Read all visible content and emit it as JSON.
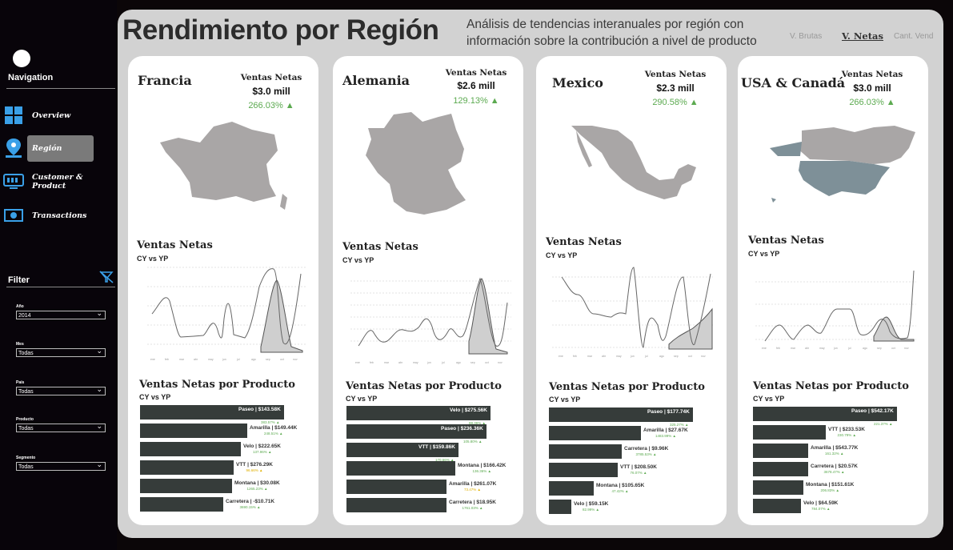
{
  "sidebar": {
    "nav_title": "Navigation",
    "items": [
      {
        "label": "Overview",
        "icon": "grid-icon"
      },
      {
        "label": "Región",
        "icon": "map-pin-icon"
      },
      {
        "label": "Customer & Product",
        "icon": "monitor-icon"
      },
      {
        "label": "Transactions",
        "icon": "money-icon"
      }
    ],
    "filter_title": "Filter",
    "filters": [
      {
        "label": "Año",
        "value": "2014"
      },
      {
        "label": "Mes",
        "value": "Todas"
      },
      {
        "label": "País",
        "value": "Todas"
      },
      {
        "label": "Producto",
        "value": "Todas"
      },
      {
        "label": "Segmento",
        "value": "Todas"
      }
    ]
  },
  "header": {
    "title": "Rendimiento por Región",
    "subtitle": "Análisis de tendencias interanuales por región con información sobre la contribución a nivel de producto",
    "toggles": [
      "V. Brutas",
      "V. Netas",
      "Cant. Vend"
    ],
    "active_toggle": "V. Netas"
  },
  "colors": {
    "accent_green": "#5caa50",
    "bar": "#363c3a",
    "map": "#a9a6a6",
    "map_highlight": "#7e9098"
  },
  "cards": [
    {
      "country": "Francia",
      "kpi_label": "Ventas Netas",
      "kpi_value": "$3.0 mill",
      "kpi_pct": "266.03% ▲",
      "chart_title": "Ventas Netas",
      "chart_sub": "CY vs YP",
      "bars_title": "Ventas Netas por Producto",
      "bars_sub": "CY vs YP",
      "bars": [
        {
          "label": "Paseo | $143.58K",
          "pct": "383.57% ▲",
          "value": 0.97,
          "inside": true
        },
        {
          "label": "Amarilla | $149.44K",
          "pct": "248.51% ▲",
          "value": 0.72
        },
        {
          "label": "Velo | $222.65K",
          "pct": "137.96% ▲",
          "value": 0.68
        },
        {
          "label": "VTT | $276.29K",
          "pct": "96.66% ▲",
          "value": 0.63,
          "pct_color": "#e0b000"
        },
        {
          "label": "Montana | $30.08K",
          "pct": "1265.23% ▲",
          "value": 0.62
        },
        {
          "label": "Carretera | -$10.71K",
          "pct": "3690.15% ▲",
          "value": 0.56
        }
      ]
    },
    {
      "country": "Alemania",
      "kpi_label": "Ventas Netas",
      "kpi_value": "$2.6 mill",
      "kpi_pct": "129.13% ▲",
      "chart_title": "Ventas Netas",
      "chart_sub": "CY vs YP",
      "bars_title": "Ventas Netas por Producto",
      "bars_sub": "CY vs YP",
      "bars": [
        {
          "label": "Velo | $275.56K",
          "pct": "88.36% ▲",
          "value": 0.97,
          "inside": true
        },
        {
          "label": "Paseo | $236.36K",
          "pct": "105.80% ▲",
          "value": 0.94,
          "inside": true
        },
        {
          "label": "VTT | $159.86K",
          "pct": "170.66% ▲",
          "value": 0.75,
          "inside": true
        },
        {
          "label": "Montana | $166.42K",
          "pct": "136.36% ▲",
          "value": 0.73
        },
        {
          "label": "Amarilla | $261.07K",
          "pct": "73.47% ▲",
          "value": 0.67,
          "pct_color": "#e0b000"
        },
        {
          "label": "Carretera | $18.95K",
          "pct": "1761.03% ▲",
          "value": 0.67
        }
      ]
    },
    {
      "country": "Mexico",
      "kpi_label": "Ventas Netas",
      "kpi_value": "$2.3 mill",
      "kpi_pct": "290.58% ▲",
      "chart_title": "Ventas Netas",
      "chart_sub": "CY vs YP",
      "bars_title": "Ventas Netas por Producto",
      "bars_sub": "CY vs YP",
      "bars": [
        {
          "label": "Paseo | $177.74K",
          "pct": "325.27% ▲",
          "value": 0.97,
          "inside": true
        },
        {
          "label": "Amarilla | $27.67K",
          "pct": "1483.99% ▲",
          "value": 0.62
        },
        {
          "label": "Carretera | $9.96K",
          "pct": "3785.53% ▲",
          "value": 0.49
        },
        {
          "label": "VTT | $208.50K",
          "pct": "76.07% ▲",
          "value": 0.46
        },
        {
          "label": "Montana | $105.65K",
          "pct": "47.42% ▲",
          "value": 0.3
        },
        {
          "label": "Velo | $59.15K",
          "pct": "82.99% ▲",
          "value": 0.15
        }
      ]
    },
    {
      "country": "USA & Canadá",
      "kpi_label": "Ventas Netas",
      "kpi_value": "$3.0 mill",
      "kpi_pct": "266.03% ▲",
      "chart_title": "Ventas Netas",
      "chart_sub": "CY vs YP",
      "bars_title": "Ventas Netas por Producto",
      "bars_sub": "CY vs YP",
      "bars": [
        {
          "label": "Paseo | $542.17K",
          "pct": "221.37% ▲",
          "value": 0.97,
          "inside": true
        },
        {
          "label": "VTT | $233.53K",
          "pct": "230.79% ▲",
          "value": 0.49
        },
        {
          "label": "Amarilla | $543.77K",
          "pct": "161.32% ▲",
          "value": 0.37
        },
        {
          "label": "Carretera | $20.57K",
          "pct": "3678.47% ▲",
          "value": 0.37
        },
        {
          "label": "Montana | $151.61K",
          "pct": "206.83% ▲",
          "value": 0.34
        },
        {
          "label": "Velo | $64.59K",
          "pct": "784.07% ▲",
          "value": 0.32
        }
      ]
    }
  ]
}
